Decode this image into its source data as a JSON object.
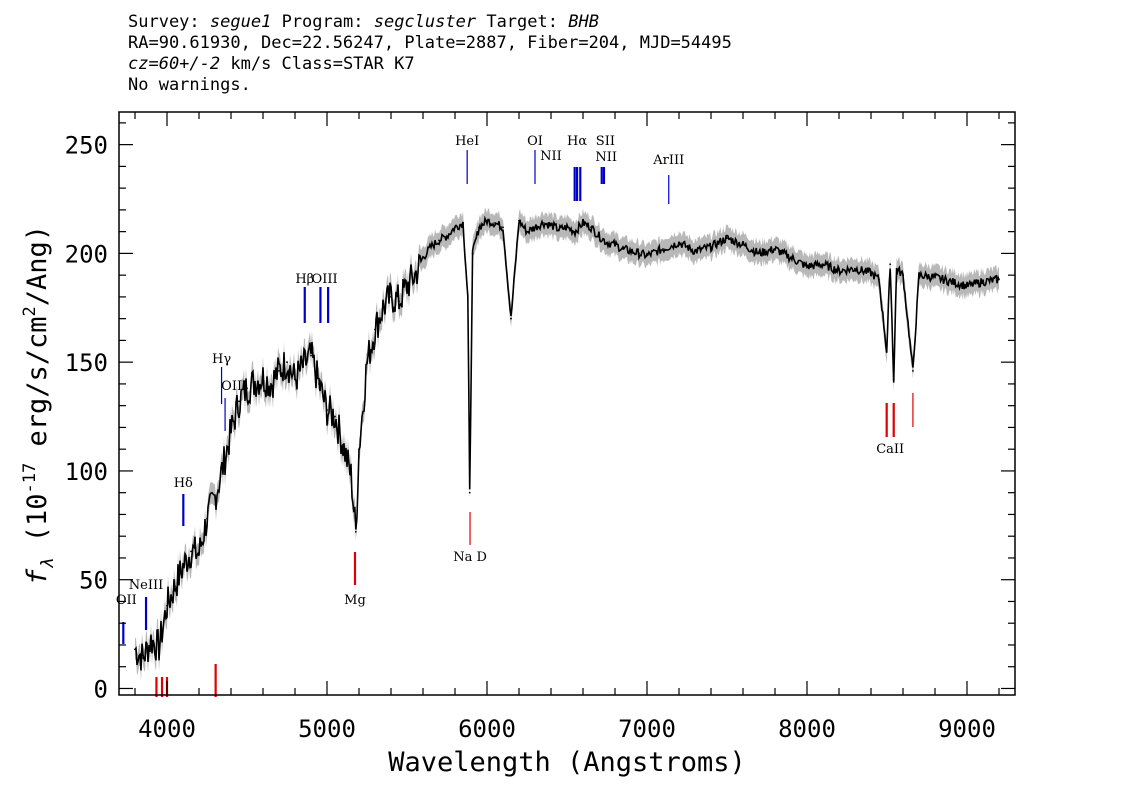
{
  "header": {
    "survey_label": "Survey:",
    "survey": "segue1",
    "program_label": "Program:",
    "program": "segcluster",
    "target_label": "Target:",
    "target": "BHB",
    "line2": "RA=90.61930, Dec=22.56247, Plate=2887, Fiber=204, MJD=54495",
    "cz": "cz=60+/-2",
    "cz_rest": " km/s Class=STAR K7",
    "line4": "No warnings."
  },
  "chart_data": {
    "type": "line",
    "xlabel": "Wavelength (Angstroms)",
    "ylabel_main": "f",
    "ylabel_sub": "λ",
    "ylabel_rest_a": " (10",
    "ylabel_exp1": "-17",
    "ylabel_rest_b": " erg/s/cm",
    "ylabel_exp2": "2",
    "ylabel_rest_c": "/Ang)",
    "xlim": [
      3700,
      9300
    ],
    "ylim": [
      -3,
      265
    ],
    "xticks": [
      4000,
      5000,
      6000,
      7000,
      8000,
      9000
    ],
    "yticks": [
      0,
      50,
      100,
      150,
      200,
      250
    ],
    "colors": {
      "spectrum": "#000000",
      "error_band": "#b8b8b8",
      "emission": "#0000c8",
      "absorption": "#e00000",
      "label_line": "#000000"
    },
    "series": [
      {
        "x": [
          3800,
          3850,
          3900,
          3950,
          4000,
          4050,
          4100,
          4150,
          4200,
          4250,
          4300,
          4350,
          4400,
          4450,
          4500,
          4550,
          4600,
          4650,
          4700,
          4750,
          4800,
          4850,
          4900,
          4950,
          5000,
          5050,
          5100,
          5150,
          5180,
          5200,
          5250,
          5300,
          5350,
          5400,
          5450,
          5500,
          5550,
          5600,
          5650,
          5700,
          5750,
          5800,
          5850,
          5880,
          5892,
          5910,
          5950,
          6000,
          6050,
          6100,
          6150,
          6200,
          6250,
          6300,
          6350,
          6400,
          6450,
          6500,
          6550,
          6600,
          6650,
          6700,
          6750,
          6800,
          6850,
          6900,
          6950,
          7000,
          7100,
          7200,
          7300,
          7400,
          7500,
          7600,
          7700,
          7800,
          7900,
          8000,
          8100,
          8200,
          8300,
          8400,
          8450,
          8498,
          8520,
          8542,
          8560,
          8600,
          8662,
          8700,
          8800,
          8900,
          9000,
          9100,
          9200
        ],
        "values": [
          18,
          14,
          22,
          19,
          38,
          47,
          56,
          63,
          62,
          78,
          88,
          102,
          118,
          132,
          138,
          141,
          143,
          140,
          146,
          150,
          142,
          148,
          153,
          140,
          128,
          125,
          112,
          98,
          72,
          110,
          150,
          165,
          175,
          180,
          178,
          185,
          190,
          198,
          203,
          206,
          208,
          212,
          214,
          180,
          90,
          200,
          212,
          215,
          214,
          212,
          170,
          215,
          210,
          212,
          214,
          213,
          211,
          212,
          210,
          214,
          212,
          208,
          205,
          204,
          202,
          201,
          200,
          199,
          202,
          205,
          201,
          203,
          207,
          204,
          200,
          202,
          198,
          194,
          195,
          192,
          193,
          191,
          188,
          155,
          195,
          142,
          193,
          190,
          146,
          190,
          189,
          187,
          185,
          187,
          188
        ]
      }
    ],
    "emission_lines": [
      {
        "name": "OII",
        "wave": 3727
      },
      {
        "name": "NeIII",
        "wave": 3869
      },
      {
        "name": "Hδ",
        "wave": 4102
      },
      {
        "name": "Hγ",
        "wave": 4341
      },
      {
        "name": "OIII",
        "wave": 4363
      },
      {
        "name": "Hβ",
        "wave": 4861
      },
      {
        "name": "OIII",
        "wave": 4959
      },
      {
        "name": "OIII",
        "wave": 5007
      },
      {
        "name": "HeI",
        "wave": 5876
      },
      {
        "name": "OI",
        "wave": 6300
      },
      {
        "name": "NII",
        "wave": 6548
      },
      {
        "name": "Hα",
        "wave": 6563
      },
      {
        "name": "NII",
        "wave": 6583
      },
      {
        "name": "SII",
        "wave": 6717
      },
      {
        "name": "SII",
        "wave": 6731
      },
      {
        "name": "ArIII",
        "wave": 7136
      }
    ],
    "absorption_lines": [
      {
        "name": "",
        "wave": 3934
      },
      {
        "name": "",
        "wave": 3969
      },
      {
        "name": "",
        "wave": 4000
      },
      {
        "name": "",
        "wave": 4304
      },
      {
        "name": "Mg",
        "wave": 5175
      },
      {
        "name": "Na D",
        "wave": 5894
      },
      {
        "name": "CaII",
        "wave": 8498
      },
      {
        "name": "CaII",
        "wave": 8542
      },
      {
        "name": "CaII",
        "wave": 8662
      }
    ]
  }
}
